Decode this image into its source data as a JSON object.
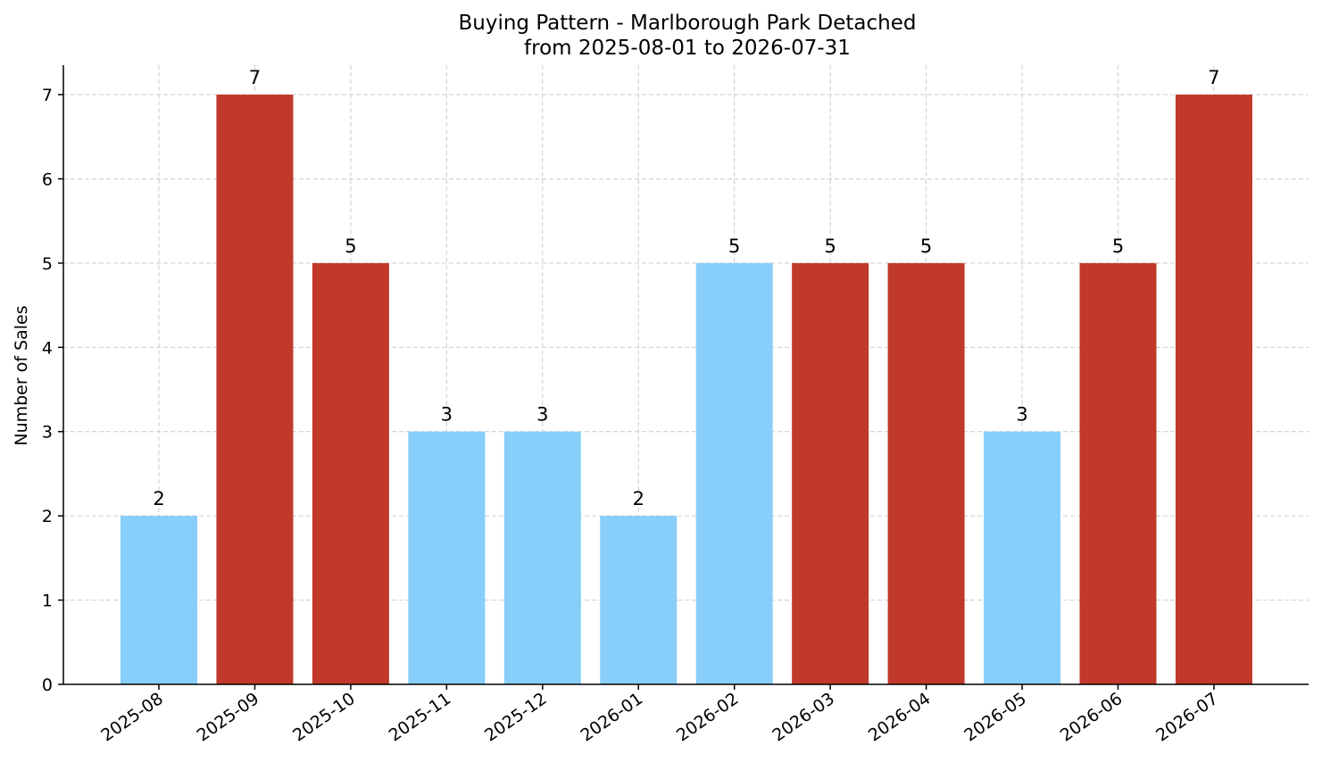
{
  "chart_data": {
    "type": "bar",
    "title": "Buying Pattern - Marlborough Park Detached",
    "subtitle": "from 2025-08-01 to 2026-07-31",
    "xlabel": "",
    "ylabel": "Number of Sales",
    "categories": [
      "2025-08",
      "2025-09",
      "2025-10",
      "2025-11",
      "2025-12",
      "2026-01",
      "2026-02",
      "2026-03",
      "2026-04",
      "2026-05",
      "2026-06",
      "2026-07"
    ],
    "values": [
      2,
      7,
      5,
      3,
      3,
      2,
      5,
      5,
      5,
      3,
      5,
      7
    ],
    "data_labels": [
      "2",
      "7",
      "5",
      "3",
      "3",
      "2",
      "5",
      "5",
      "5",
      "3",
      "5",
      "7"
    ],
    "bar_colors": [
      "#87cefa",
      "#c0392b",
      "#c0392b",
      "#87cefa",
      "#87cefa",
      "#87cefa",
      "#87cefa",
      "#c0392b",
      "#c0392b",
      "#87cefa",
      "#c0392b",
      "#c0392b"
    ],
    "yticks": [
      0,
      1,
      2,
      3,
      4,
      5,
      6,
      7
    ],
    "ylim": [
      0,
      7.35
    ],
    "grid": true,
    "legend": "none"
  }
}
